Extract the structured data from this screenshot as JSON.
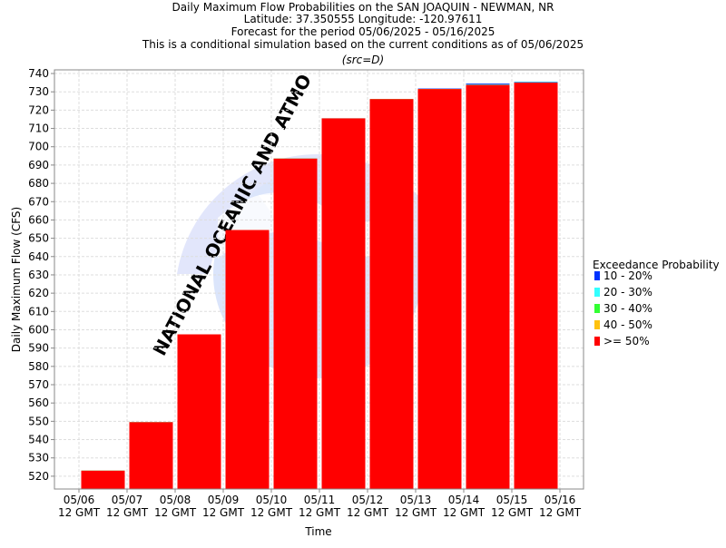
{
  "chart_data": {
    "type": "bar",
    "title_lines": [
      "Daily Maximum Flow Probabilities on the SAN JOAQUIN - NEWMAN, NR",
      "Latitude: 37.350555 Longitude: -120.97611",
      "Forecast for the period 05/06/2025 - 05/16/2025",
      "This is a conditional simulation based on the current conditions as of 05/06/2025"
    ],
    "subtitle": "(src=D)",
    "xlabel": "Time",
    "ylabel": "Daily Maximum Flow (CFS)",
    "ylim": [
      513,
      742
    ],
    "yticks": [
      520,
      530,
      540,
      550,
      560,
      570,
      580,
      590,
      600,
      610,
      620,
      630,
      640,
      650,
      660,
      670,
      680,
      690,
      700,
      710,
      720,
      730,
      740
    ],
    "xticks": [
      [
        "05/06",
        "12 GMT"
      ],
      [
        "05/07",
        "12 GMT"
      ],
      [
        "05/08",
        "12 GMT"
      ],
      [
        "05/09",
        "12 GMT"
      ],
      [
        "05/10",
        "12 GMT"
      ],
      [
        "05/11",
        "12 GMT"
      ],
      [
        "05/12",
        "12 GMT"
      ],
      [
        "05/13",
        "12 GMT"
      ],
      [
        "05/14",
        "12 GMT"
      ],
      [
        "05/15",
        "12 GMT"
      ],
      [
        "05/16",
        "12 GMT"
      ]
    ],
    "categories": [
      "05/06",
      "05/07",
      "05/08",
      "05/09",
      "05/10",
      "05/11",
      "05/12",
      "05/13",
      "05/14",
      "05/15"
    ],
    "series": [
      {
        "name": ">= 50%",
        "color": "#ff0000",
        "values": [
          523,
          549.5,
          597.5,
          654.5,
          693.5,
          715.5,
          726,
          731.5,
          733.8,
          735
        ]
      },
      {
        "name": "40 - 50%",
        "color": "#ffc20e",
        "values": [
          523,
          549.5,
          597.5,
          654.5,
          693.5,
          715.5,
          726,
          731.5,
          733.8,
          735
        ]
      },
      {
        "name": "30 - 40%",
        "color": "#33ff33",
        "values": [
          523,
          549.5,
          597.5,
          654.5,
          693.5,
          715.5,
          726,
          731.5,
          733.8,
          735
        ]
      },
      {
        "name": "20 - 30%",
        "color": "#33ffff",
        "values": [
          523,
          549.5,
          597.5,
          654.5,
          693.5,
          715.5,
          726,
          731.6,
          734.1,
          735.3
        ]
      },
      {
        "name": "10 - 20%",
        "color": "#0033ff",
        "values": [
          523,
          549.5,
          597.5,
          654.5,
          693.5,
          715.5,
          726,
          731.8,
          734.5,
          735.5
        ]
      }
    ],
    "legend": {
      "title": "Exceedance Probability",
      "placement": "right",
      "items": [
        {
          "label": "10 - 20%",
          "color": "#0033ff"
        },
        {
          "label": "20 - 30%",
          "color": "#33ffff"
        },
        {
          "label": "30 - 40%",
          "color": "#33ff33"
        },
        {
          "label": "40 - 50%",
          "color": "#ffc20e"
        },
        {
          "label": ">= 50%",
          "color": "#ff0000"
        }
      ]
    },
    "grid": true,
    "colors": {
      "grid": "#dddddd",
      "axis": "#888888",
      "watermark": "#dde4fb"
    },
    "watermark": "NATIONAL OCEANIC AND ATMO"
  }
}
